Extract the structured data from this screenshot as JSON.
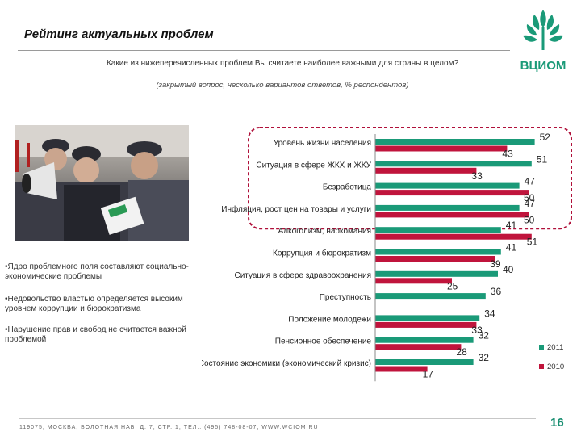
{
  "slide": {
    "title": "Рейтинг актуальных проблем",
    "question": "Какие из нижеперечисленных проблем Вы считаете наиболее важными для страны в целом?",
    "subquestion": "(закрытый вопрос, несколько вариантов ответов, % респондентов)",
    "logo_text": "ВЦИОМ",
    "bullets": [
      "•Ядро проблемного поля составляют социально-экономические проблемы",
      "•Недовольство властью определяется высоким уровнем коррупции и бюрократизма",
      "•Нарушение прав и свобод не считается важной проблемой"
    ],
    "footer": "119075, МОСКВА, БОЛОТНАЯ НАБ. Д. 7, СТР. 1, ТЕЛ.: (495) 748-08-07, WWW.WCIOM.RU",
    "page_number": "16"
  },
  "colors": {
    "series_2011": "#1a9a78",
    "series_2010": "#c0143c",
    "highlight_border": "#b0103a",
    "accent": "#1a8f72"
  },
  "chart_data": {
    "type": "bar",
    "orientation": "horizontal",
    "categories": [
      "Уровень жизни населения",
      "Ситуация в сфере ЖКХ и ЖКУ",
      "Безработица",
      "Инфляция, рост цен на товары и услуги",
      "Алкоголизм, наркомания",
      "Коррупция и бюрократизм",
      "Ситуация в сфере здравоохранения",
      "Преступность",
      "Положение молодежи",
      "Пенсионное обеспечение",
      "Состояние экономики (экономический кризис)"
    ],
    "series": [
      {
        "name": "2011",
        "values": [
          52,
          51,
          47,
          47,
          41,
          41,
          40,
          36,
          34,
          32,
          32
        ]
      },
      {
        "name": "2010",
        "values": [
          43,
          33,
          50,
          50,
          51,
          39,
          25,
          null,
          33,
          28,
          17
        ]
      }
    ],
    "xlim": [
      0,
      60
    ],
    "highlighted_categories": 4,
    "legend_position": "bottom-right"
  }
}
